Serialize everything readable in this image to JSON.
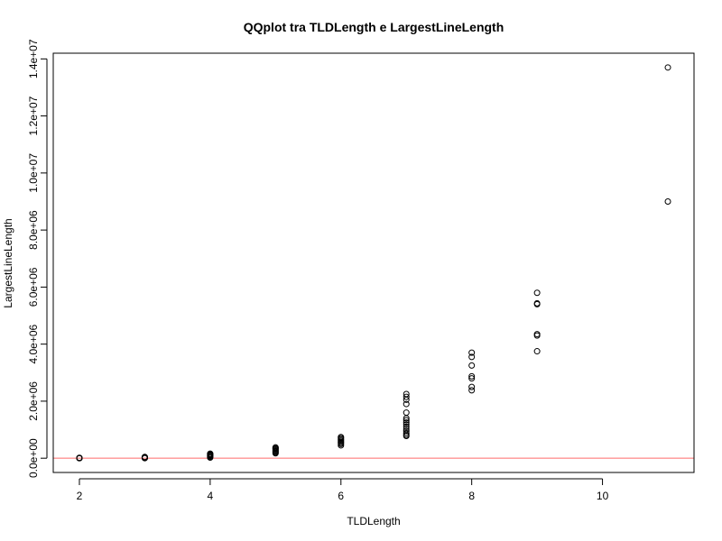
{
  "chart_data": {
    "type": "scatter",
    "title": "QQplot tra TLDLength e LargestLineLength",
    "xlabel": "TLDLength",
    "ylabel": "LargestLineLength",
    "xlim": [
      1.6,
      11.4
    ],
    "ylim": [
      -500000,
      14200000
    ],
    "x_ticks": [
      2,
      4,
      6,
      8,
      10
    ],
    "x_tick_labels": [
      "2",
      "4",
      "6",
      "8",
      "10"
    ],
    "y_ticks": [
      0,
      2000000,
      4000000,
      6000000,
      8000000,
      10000000,
      12000000,
      14000000
    ],
    "y_tick_labels": [
      "0.0e+00",
      "2.0e+06",
      "4.0e+06",
      "6.0e+06",
      "8.0e+06",
      "1.0e+07",
      "1.2e+07",
      "1.4e+07"
    ],
    "grid": false,
    "marker": "open-circle",
    "reference_line": {
      "y": 0,
      "color": "#ff6b6b"
    },
    "series": [
      {
        "points": [
          [
            2,
            0
          ],
          [
            2,
            0
          ],
          [
            2,
            0
          ],
          [
            2,
            5000
          ],
          [
            2,
            10000
          ],
          [
            2,
            15000
          ],
          [
            3,
            0
          ],
          [
            3,
            8000
          ],
          [
            3,
            15000
          ],
          [
            3,
            25000
          ],
          [
            3,
            35000
          ],
          [
            3,
            45000
          ],
          [
            4,
            20000
          ],
          [
            4,
            50000
          ],
          [
            4,
            80000
          ],
          [
            4,
            100000
          ],
          [
            4,
            120000
          ],
          [
            4,
            140000
          ],
          [
            4,
            160000
          ],
          [
            5,
            170000
          ],
          [
            5,
            200000
          ],
          [
            5,
            230000
          ],
          [
            5,
            260000
          ],
          [
            5,
            290000
          ],
          [
            5,
            320000
          ],
          [
            5,
            350000
          ],
          [
            5,
            380000
          ],
          [
            6,
            450000
          ],
          [
            6,
            500000
          ],
          [
            6,
            540000
          ],
          [
            6,
            580000
          ],
          [
            6,
            620000
          ],
          [
            6,
            660000
          ],
          [
            6,
            700000
          ],
          [
            6,
            740000
          ],
          [
            7,
            780000
          ],
          [
            7,
            820000
          ],
          [
            7,
            880000
          ],
          [
            7,
            950000
          ],
          [
            7,
            1020000
          ],
          [
            7,
            1100000
          ],
          [
            7,
            1180000
          ],
          [
            7,
            1250000
          ],
          [
            7,
            1330000
          ],
          [
            7,
            1400000
          ],
          [
            7,
            1600000
          ],
          [
            7,
            1900000
          ],
          [
            7,
            2050000
          ],
          [
            7,
            2150000
          ],
          [
            7,
            2250000
          ],
          [
            8,
            2380000
          ],
          [
            8,
            2500000
          ],
          [
            8,
            2800000
          ],
          [
            8,
            2870000
          ],
          [
            8,
            3250000
          ],
          [
            8,
            3550000
          ],
          [
            8,
            3700000
          ],
          [
            9,
            3750000
          ],
          [
            9,
            4300000
          ],
          [
            9,
            4350000
          ],
          [
            9,
            5400000
          ],
          [
            9,
            5430000
          ],
          [
            9,
            5800000
          ],
          [
            11,
            9000000
          ],
          [
            11,
            13700000
          ]
        ]
      }
    ]
  }
}
